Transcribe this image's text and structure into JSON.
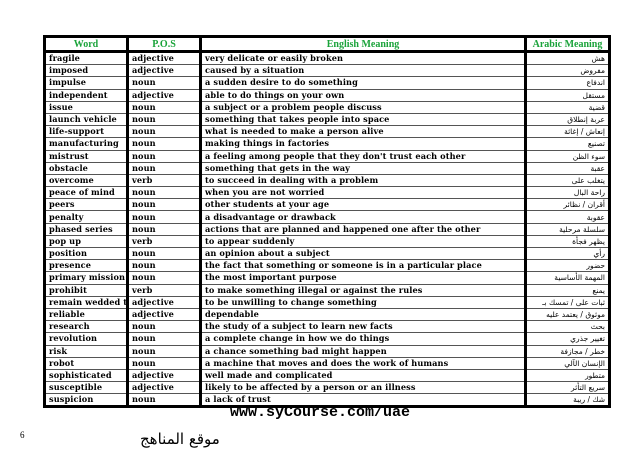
{
  "headers": [
    "Word",
    "P.O.S",
    "English Meaning",
    "Arabic Meaning"
  ],
  "rows": [
    [
      "fragile",
      "adjective",
      "very delicate or easily broken",
      "هش"
    ],
    [
      "imposed",
      "adjective",
      "caused by a situation",
      "مفروض"
    ],
    [
      "impulse",
      "noun",
      "a sudden desire to do something",
      "اندفاع"
    ],
    [
      "independent",
      "adjective",
      "able to do things on your own",
      "مستقل"
    ],
    [
      "issue",
      "noun",
      "a subject or a problem people discuss",
      "قضية"
    ],
    [
      "launch vehicle",
      "noun",
      "something that takes people into space",
      "عربة إنطلاق"
    ],
    [
      "life-support",
      "noun",
      "what is needed to make a person alive",
      "إنعاش / إغاثة"
    ],
    [
      "manufacturing",
      "noun",
      "making things in factories",
      "تصنيع"
    ],
    [
      "mistrust",
      "noun",
      "a feeling among people that they don't trust each other",
      "سوء الظن"
    ],
    [
      "obstacle",
      "noun",
      "something that gets in the way",
      "عقبة"
    ],
    [
      "overcome",
      "verb",
      "to succeed in dealing with a problem",
      "يتغلب على"
    ],
    [
      "peace of mind",
      "noun",
      "when you are not worried",
      "راحة البال"
    ],
    [
      "peers",
      "noun",
      "other students at your age",
      "أقران / نظائر"
    ],
    [
      "penalty",
      "noun",
      "a disadvantage or drawback",
      "عقوبة"
    ],
    [
      "phased series",
      "noun",
      "actions that are planned and happened one after the other",
      "سلسلة مرحلية"
    ],
    [
      "pop up",
      "verb",
      "to appear suddenly",
      "يظهر فجأة"
    ],
    [
      "position",
      "noun",
      "an opinion about a subject",
      "رأي"
    ],
    [
      "presence",
      "noun",
      "the fact that  something or  someone is in a particular place",
      "حضور"
    ],
    [
      "primary mission",
      "noun",
      "the most important purpose",
      "المهمة الأساسية"
    ],
    [
      "prohibit",
      "verb",
      "to make something illegal or against the rules",
      "يمنع"
    ],
    [
      "remain wedded to",
      "adjective",
      "to be unwilling to change something",
      "ثبات على / تمسك بـ"
    ],
    [
      "reliable",
      "adjective",
      "dependable",
      "موثوق / يعتمد عليه"
    ],
    [
      "research",
      "noun",
      "the study of a subject to learn new facts",
      "بحث"
    ],
    [
      "revolution",
      "noun",
      "a complete change in how we do things",
      "تغيير جذري"
    ],
    [
      "risk",
      "noun",
      "a chance something bad might happen",
      "خطر / مجازفة"
    ],
    [
      "robot",
      "noun",
      "a machine that moves and does the work of humans",
      "الإنسان الآلي"
    ],
    [
      "sophisticated",
      "adjective",
      "well made and complicated",
      "متطور"
    ],
    [
      "susceptible",
      "adjective",
      "likely to be affected by a person or an illness",
      "سريع التأثر"
    ],
    [
      "suspicion",
      "noun",
      "a lack of trust",
      "شك / ريبة"
    ]
  ],
  "footer": {
    "url": "www.syCourse.com/uae",
    "page_number": "6",
    "logo_text": "موقع المناهج"
  },
  "colors": {
    "header_text": "#1aa33a"
  }
}
